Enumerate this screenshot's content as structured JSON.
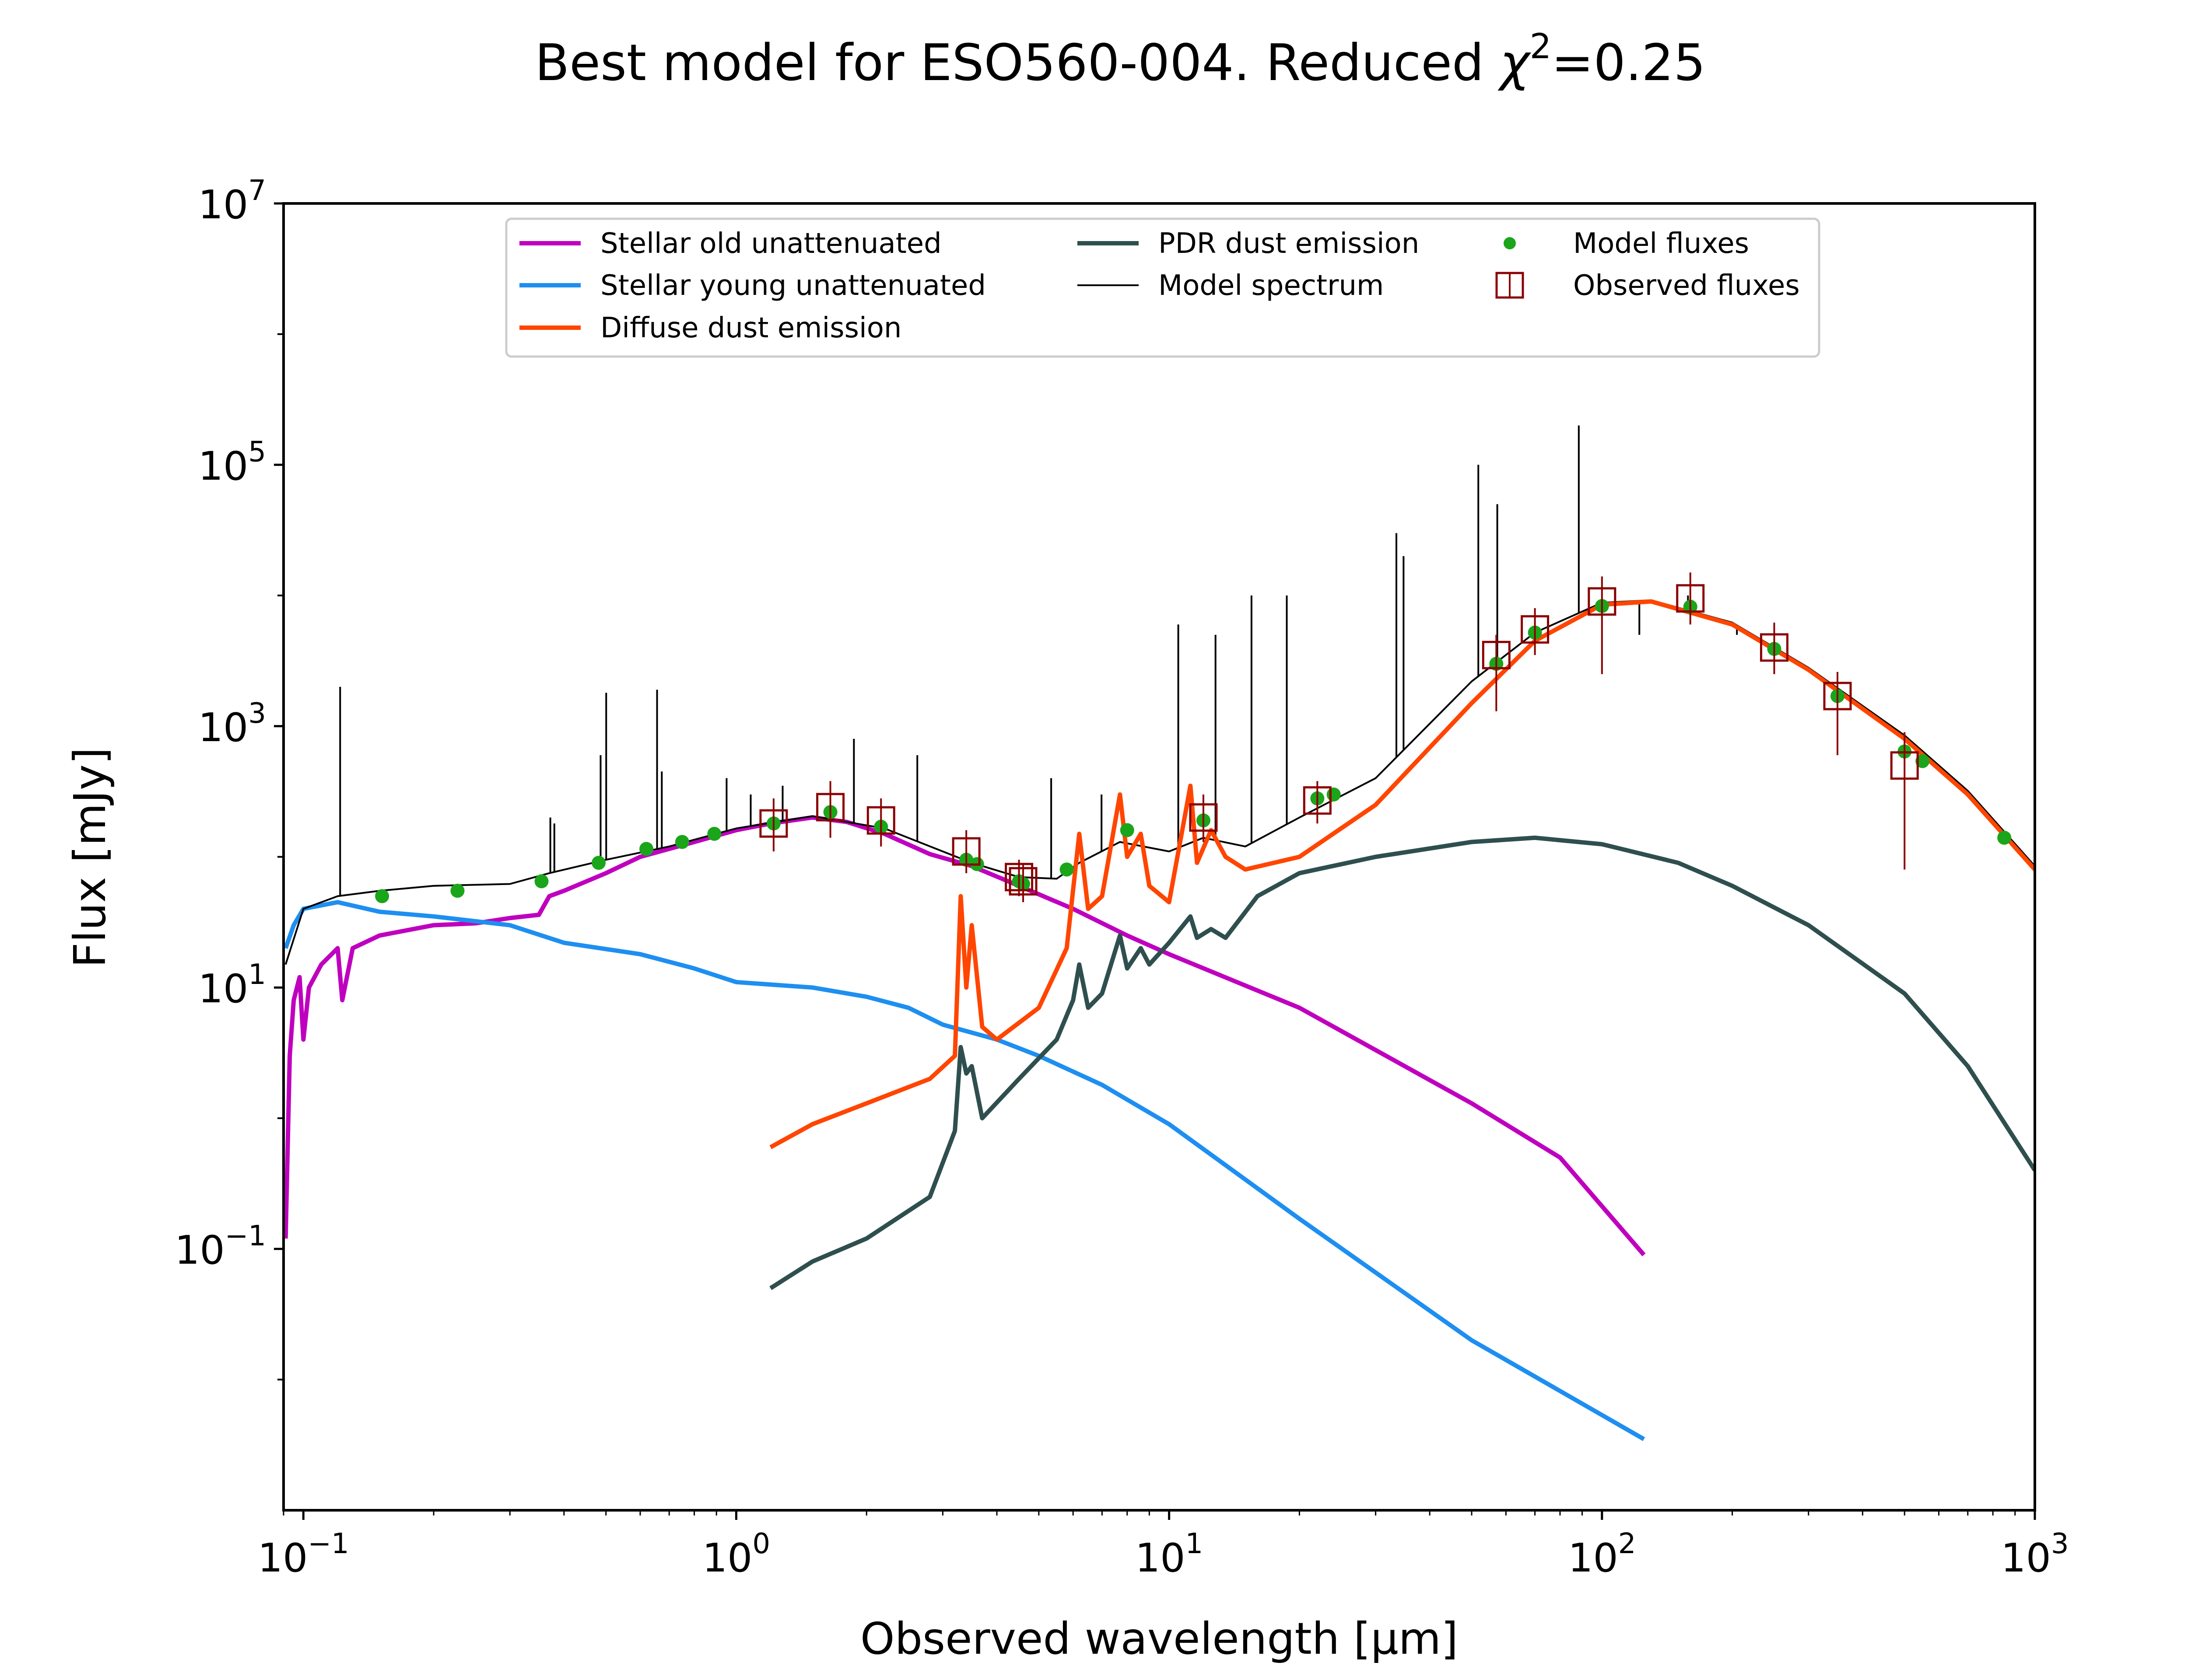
{
  "chart_data": {
    "type": "line",
    "title_main": "Best model for ESO560-004. Reduced ",
    "title_chi": "χ",
    "title_sup": "2",
    "title_tail": "=0.25",
    "xlabel": "Observed wavelength [μm]",
    "ylabel": "Flux [mJy]",
    "x_scale": "log",
    "y_scale": "log",
    "xlim": [
      0.09,
      1000
    ],
    "ylim": [
      0.001,
      10000000
    ],
    "x_ticks": [
      {
        "value": 0.1,
        "base": "10",
        "exp": "−1"
      },
      {
        "value": 1,
        "base": "10",
        "exp": "0"
      },
      {
        "value": 10,
        "base": "10",
        "exp": "1"
      },
      {
        "value": 100,
        "base": "10",
        "exp": "2"
      },
      {
        "value": 1000,
        "base": "10",
        "exp": "3"
      }
    ],
    "y_ticks": [
      {
        "value": 0.1,
        "base": "10",
        "exp": "−1"
      },
      {
        "value": 10,
        "base": "10",
        "exp": "1"
      },
      {
        "value": 1000,
        "base": "10",
        "exp": "3"
      },
      {
        "value": 100000,
        "base": "10",
        "exp": "5"
      },
      {
        "value": 10000000,
        "base": "10",
        "exp": "7"
      }
    ],
    "grid": false,
    "legend_position": "top-center",
    "series": [
      {
        "name": "Stellar old unattenuated",
        "color": "#bf00bf",
        "points": [
          [
            0.091,
            0.12
          ],
          [
            0.093,
            3
          ],
          [
            0.095,
            8
          ],
          [
            0.098,
            12
          ],
          [
            0.1,
            4
          ],
          [
            0.103,
            10
          ],
          [
            0.11,
            15
          ],
          [
            0.12,
            20
          ],
          [
            0.123,
            8
          ],
          [
            0.13,
            20
          ],
          [
            0.15,
            25
          ],
          [
            0.2,
            30
          ],
          [
            0.25,
            31
          ],
          [
            0.3,
            34
          ],
          [
            0.35,
            36
          ],
          [
            0.37,
            50
          ],
          [
            0.4,
            55
          ],
          [
            0.5,
            75
          ],
          [
            0.6,
            100
          ],
          [
            0.8,
            130
          ],
          [
            1.0,
            160
          ],
          [
            1.2,
            180
          ],
          [
            1.5,
            200
          ],
          [
            1.8,
            185
          ],
          [
            2.2,
            150
          ],
          [
            2.8,
            105
          ],
          [
            3.5,
            85
          ],
          [
            4.5,
            60
          ],
          [
            6,
            40
          ],
          [
            8,
            25
          ],
          [
            10,
            18
          ],
          [
            20,
            7
          ],
          [
            50,
            1.3
          ],
          [
            80,
            0.5
          ],
          [
            125,
            0.09
          ]
        ]
      },
      {
        "name": "Stellar young unattenuated",
        "color": "#1e8ff0",
        "points": [
          [
            0.091,
            20
          ],
          [
            0.095,
            30
          ],
          [
            0.1,
            40
          ],
          [
            0.12,
            45
          ],
          [
            0.15,
            38
          ],
          [
            0.2,
            35
          ],
          [
            0.3,
            30
          ],
          [
            0.4,
            22
          ],
          [
            0.6,
            18
          ],
          [
            0.8,
            14
          ],
          [
            1.0,
            11
          ],
          [
            1.5,
            10
          ],
          [
            2.0,
            8.5
          ],
          [
            2.5,
            7
          ],
          [
            3.0,
            5.2
          ],
          [
            4.0,
            4
          ],
          [
            5.0,
            3
          ],
          [
            7,
            1.8
          ],
          [
            10,
            0.9
          ],
          [
            20,
            0.17
          ],
          [
            50,
            0.02
          ],
          [
            125,
            0.0035
          ]
        ]
      },
      {
        "name": "Diffuse dust emission",
        "color": "#ff4500",
        "points": [
          [
            1.2,
            0.6
          ],
          [
            1.5,
            0.9
          ],
          [
            2.0,
            1.3
          ],
          [
            2.8,
            2.0
          ],
          [
            3.2,
            3
          ],
          [
            3.3,
            50
          ],
          [
            3.4,
            10
          ],
          [
            3.5,
            30
          ],
          [
            3.7,
            5
          ],
          [
            4,
            4
          ],
          [
            5,
            7
          ],
          [
            5.8,
            20
          ],
          [
            6.2,
            150
          ],
          [
            6.5,
            40
          ],
          [
            7.0,
            50
          ],
          [
            7.7,
            300
          ],
          [
            8.0,
            100
          ],
          [
            8.6,
            150
          ],
          [
            9.0,
            60
          ],
          [
            10,
            45
          ],
          [
            11.2,
            350
          ],
          [
            11.6,
            90
          ],
          [
            12.5,
            160
          ],
          [
            13.5,
            100
          ],
          [
            15,
            80
          ],
          [
            20,
            100
          ],
          [
            30,
            250
          ],
          [
            50,
            1500
          ],
          [
            70,
            4500
          ],
          [
            100,
            8500
          ],
          [
            130,
            9000
          ],
          [
            200,
            6000
          ],
          [
            300,
            2700
          ],
          [
            500,
            800
          ],
          [
            700,
            300
          ],
          [
            1000,
            80
          ]
        ]
      },
      {
        "name": "PDR dust emission",
        "color": "#2f4f4f",
        "points": [
          [
            1.2,
            0.05
          ],
          [
            1.5,
            0.08
          ],
          [
            2.0,
            0.12
          ],
          [
            2.8,
            0.25
          ],
          [
            3.2,
            0.8
          ],
          [
            3.3,
            3.5
          ],
          [
            3.4,
            2.2
          ],
          [
            3.5,
            2.5
          ],
          [
            3.7,
            1
          ],
          [
            4.5,
            2
          ],
          [
            5.5,
            4
          ],
          [
            6.0,
            8
          ],
          [
            6.2,
            15
          ],
          [
            6.5,
            7
          ],
          [
            7.0,
            9
          ],
          [
            7.7,
            25
          ],
          [
            8.0,
            14
          ],
          [
            8.6,
            20
          ],
          [
            9.0,
            15
          ],
          [
            10,
            22
          ],
          [
            11.2,
            35
          ],
          [
            11.6,
            24
          ],
          [
            12.5,
            28
          ],
          [
            13.5,
            24
          ],
          [
            16,
            50
          ],
          [
            20,
            75
          ],
          [
            30,
            100
          ],
          [
            50,
            130
          ],
          [
            70,
            140
          ],
          [
            100,
            125
          ],
          [
            150,
            90
          ],
          [
            200,
            60
          ],
          [
            300,
            30
          ],
          [
            500,
            9
          ],
          [
            700,
            2.5
          ],
          [
            1000,
            0.4
          ]
        ]
      }
    ],
    "model_spectrum": {
      "name": "Model spectrum",
      "color": "#000000",
      "points": [
        [
          0.091,
          15
        ],
        [
          0.1,
          40
        ],
        [
          0.12,
          50
        ],
        [
          0.15,
          55
        ],
        [
          0.2,
          60
        ],
        [
          0.3,
          62
        ],
        [
          0.37,
          75
        ],
        [
          0.5,
          95
        ],
        [
          0.7,
          120
        ],
        [
          1.0,
          165
        ],
        [
          1.5,
          205
        ],
        [
          2.2,
          165
        ],
        [
          3.0,
          110
        ],
        [
          3.5,
          90
        ],
        [
          4.5,
          70
        ],
        [
          5.5,
          68
        ],
        [
          6.2,
          90
        ],
        [
          7.7,
          130
        ],
        [
          10,
          110
        ],
        [
          12,
          140
        ],
        [
          15,
          120
        ],
        [
          20,
          200
        ],
        [
          30,
          400
        ],
        [
          50,
          2200
        ],
        [
          70,
          5200
        ],
        [
          100,
          8800
        ],
        [
          130,
          9200
        ],
        [
          200,
          6200
        ],
        [
          300,
          2800
        ],
        [
          500,
          850
        ],
        [
          700,
          320
        ],
        [
          1000,
          85
        ]
      ],
      "lines": [
        [
          0.1216,
          2000
        ],
        [
          0.372,
          200
        ],
        [
          0.38,
          180
        ],
        [
          0.486,
          600
        ],
        [
          0.5007,
          1800
        ],
        [
          0.6563,
          1900
        ],
        [
          0.673,
          450
        ],
        [
          0.95,
          400
        ],
        [
          1.08,
          300
        ],
        [
          1.28,
          350
        ],
        [
          1.87,
          800
        ],
        [
          2.62,
          600
        ],
        [
          5.34,
          400
        ],
        [
          6.98,
          300
        ],
        [
          10.5,
          6000
        ],
        [
          12.8,
          5000
        ],
        [
          15.5,
          10000
        ],
        [
          18.7,
          10000
        ],
        [
          33.5,
          30000
        ],
        [
          34.8,
          20000
        ],
        [
          51.8,
          100000
        ],
        [
          57.3,
          50000
        ],
        [
          88.4,
          200000
        ],
        [
          122,
          5000
        ],
        [
          158,
          10000
        ],
        [
          205,
          5000
        ]
      ]
    },
    "observed_fluxes": {
      "name": "Observed fluxes",
      "color": "#8b0000",
      "points": [
        [
          1.22,
          180,
          110,
          280
        ],
        [
          1.65,
          240,
          140,
          380
        ],
        [
          2.16,
          190,
          120,
          280
        ],
        [
          3.4,
          110,
          75,
          160
        ],
        [
          4.5,
          70,
          50,
          95
        ],
        [
          4.6,
          65,
          45,
          88
        ],
        [
          12,
          200,
          130,
          300
        ],
        [
          22,
          270,
          180,
          380
        ],
        [
          57,
          3500,
          1300,
          5000
        ],
        [
          70,
          5500,
          3500,
          8000
        ],
        [
          100,
          9000,
          2500,
          14000
        ],
        [
          160,
          9500,
          6000,
          15000
        ],
        [
          250,
          4000,
          2500,
          6200
        ],
        [
          350,
          1700,
          600,
          2600
        ],
        [
          500,
          500,
          80,
          900
        ]
      ]
    },
    "model_fluxes": {
      "name": "Model fluxes",
      "color": "#1aa51a",
      "points": [
        [
          0.152,
          50
        ],
        [
          0.227,
          55
        ],
        [
          0.355,
          65
        ],
        [
          0.481,
          90
        ],
        [
          0.62,
          115
        ],
        [
          0.75,
          130
        ],
        [
          0.89,
          150
        ],
        [
          1.22,
          180
        ],
        [
          1.65,
          220
        ],
        [
          2.16,
          170
        ],
        [
          3.4,
          95
        ],
        [
          3.6,
          88
        ],
        [
          4.5,
          65
        ],
        [
          4.6,
          62
        ],
        [
          5.8,
          80
        ],
        [
          8,
          160
        ],
        [
          12,
          190
        ],
        [
          22,
          280
        ],
        [
          24,
          300
        ],
        [
          57,
          3000
        ],
        [
          70,
          5200
        ],
        [
          100,
          8300
        ],
        [
          160,
          8200
        ],
        [
          250,
          3900
        ],
        [
          350,
          1700
        ],
        [
          500,
          640
        ],
        [
          550,
          540
        ],
        [
          850,
          140
        ]
      ]
    }
  }
}
